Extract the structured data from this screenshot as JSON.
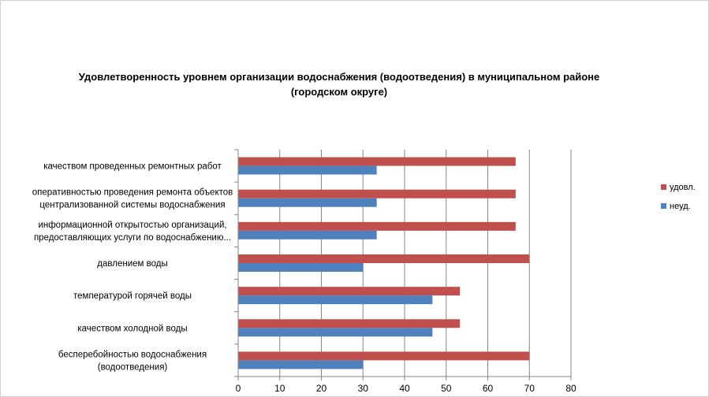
{
  "chart_data": {
    "type": "bar",
    "orientation": "horizontal",
    "title_lines": [
      "Удовлетворенность уровнем организации водоснабжения (водоотведения) в муниципальном районе",
      "(городском округе)"
    ],
    "categories": [
      [
        "качеством  проведенных  ремонтных работ"
      ],
      [
        "оперативностью  проведения  ремонта объектов",
        "централизованной системы водоснабжения"
      ],
      [
        "информационной открытостью организаций,",
        "предоставляющих услуги по водоснабжению..."
      ],
      [
        "давлением  воды"
      ],
      [
        "температурой горячей воды"
      ],
      [
        "качеством холодной воды"
      ],
      [
        "бесперебойностью  водоснабжения",
        "(водоотведения)"
      ]
    ],
    "series": [
      {
        "name": "удовл.",
        "color": "#C0504D",
        "values": [
          66.7,
          66.7,
          66.7,
          70,
          53.3,
          53.3,
          70
        ]
      },
      {
        "name": "неуд.",
        "color": "#4F81BD",
        "values": [
          33.3,
          33.3,
          33.3,
          30,
          46.7,
          46.7,
          30
        ]
      }
    ],
    "xlim": [
      0,
      80
    ],
    "xticks": [
      0,
      10,
      20,
      30,
      40,
      50,
      60,
      70,
      80
    ],
    "grid": true,
    "legend_position": "right"
  }
}
